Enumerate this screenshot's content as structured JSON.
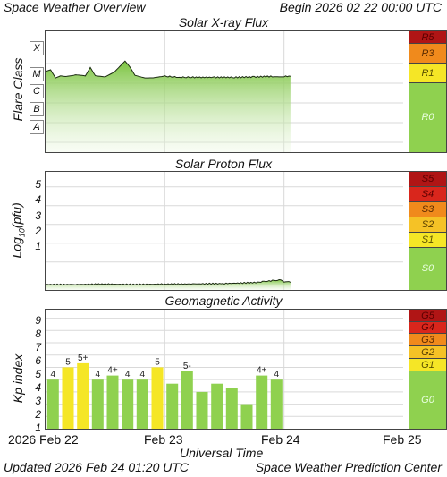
{
  "header": {
    "left": "Space Weather Overview",
    "right": "Begin 2026 02 22 00:00 UTC"
  },
  "xray": {
    "title": "Solar X-ray Flux",
    "ylabel": "Flare Class",
    "classes": [
      "X",
      "M",
      "C",
      "B",
      "A"
    ],
    "scale": [
      "R5",
      "R3",
      "R1",
      "R0"
    ]
  },
  "proton": {
    "title": "Solar Proton Flux",
    "ylabel": "Log10(pfu)",
    "ticks": [
      "5",
      "4",
      "3",
      "2",
      "1"
    ],
    "scale": [
      "S5",
      "S4",
      "S3",
      "S2",
      "S1",
      "S0"
    ]
  },
  "geo": {
    "title": "Geomagnetic Activity",
    "ylabel": "Kp index",
    "ticks": [
      "9",
      "8",
      "7",
      "6",
      "5",
      "4",
      "3",
      "2",
      "1"
    ],
    "scale": [
      "G5",
      "G4",
      "G3",
      "G2",
      "G1",
      "G0"
    ]
  },
  "xaxis": {
    "labels": [
      "2026 Feb 22",
      "Feb 23",
      "Feb 24",
      "Feb 25"
    ],
    "title": "Universal Time"
  },
  "footer": {
    "left": "Updated 2026 Feb 24 01:20 UTC",
    "right": "Space Weather Prediction Center"
  },
  "colors": {
    "green": "#8fd14f",
    "yellow": "#f5e626",
    "orange": "#f5a623",
    "red": "#d9261c",
    "darkred": "#b01515",
    "grid": "#d9d9d9"
  },
  "chart_data": [
    {
      "type": "line",
      "title": "Solar X-ray Flux",
      "ylabel": "Flare Class",
      "y_categories": [
        "A",
        "B",
        "C",
        "M",
        "X"
      ],
      "x_range": [
        "2026-02-22 00:00",
        "2026-02-25 00:00"
      ],
      "series": [
        {
          "x_hours": [
            0,
            1,
            2,
            3,
            4,
            6,
            8,
            9,
            10,
            12,
            14,
            16,
            17,
            18,
            19,
            20,
            22,
            24,
            27,
            30,
            34,
            38,
            42,
            46,
            48,
            49.3
          ],
          "level": [
            4.1,
            4.2,
            3.8,
            3.9,
            3.85,
            3.9,
            3.85,
            4.3,
            3.9,
            3.85,
            4.1,
            4.6,
            4.3,
            3.9,
            3.85,
            3.8,
            3.8,
            3.85,
            3.8,
            3.8,
            3.8,
            3.8,
            3.82,
            3.85,
            3.85,
            3.85
          ]
        }
      ]
    },
    {
      "type": "line",
      "title": "Solar Proton Flux",
      "ylabel": "Log10(pfu)",
      "ylim": [
        -0.3,
        5.8
      ],
      "x_range": [
        "2026-02-22 00:00",
        "2026-02-25 00:00"
      ],
      "series": [
        {
          "x_hours": [
            0,
            6,
            12,
            18,
            24,
            30,
            36,
            42,
            44,
            46,
            47,
            48,
            49.3
          ],
          "values": [
            -0.2,
            -0.2,
            -0.18,
            -0.2,
            -0.18,
            -0.17,
            -0.15,
            -0.1,
            -0.05,
            0.02,
            0.05,
            -0.05,
            -0.08
          ]
        }
      ]
    },
    {
      "type": "bar",
      "title": "Geomagnetic Activity",
      "ylabel": "Kp index",
      "xlabel": "Universal Time",
      "ylim": [
        0,
        9.7
      ],
      "x_range": [
        "2026-02-22 00:00",
        "2026-02-25 00:00"
      ],
      "bar_hours": [
        0,
        3,
        6,
        9,
        12,
        15,
        18,
        21,
        24,
        27,
        30,
        33,
        36,
        39,
        42,
        45
      ],
      "values": [
        4,
        5,
        5.33,
        4,
        4.33,
        4,
        4,
        5,
        3.67,
        4.67,
        3,
        3.67,
        3.33,
        2,
        4.33,
        4
      ],
      "labels": [
        "4",
        "5",
        "5+",
        "4",
        "4+",
        "4",
        "4",
        "5",
        "",
        "5-",
        "",
        "",
        "",
        "",
        "4+",
        "4"
      ],
      "colors": [
        "green",
        "yellow",
        "yellow",
        "green",
        "green",
        "green",
        "green",
        "yellow",
        "green",
        "green",
        "green",
        "green",
        "green",
        "green",
        "green",
        "green"
      ]
    }
  ]
}
